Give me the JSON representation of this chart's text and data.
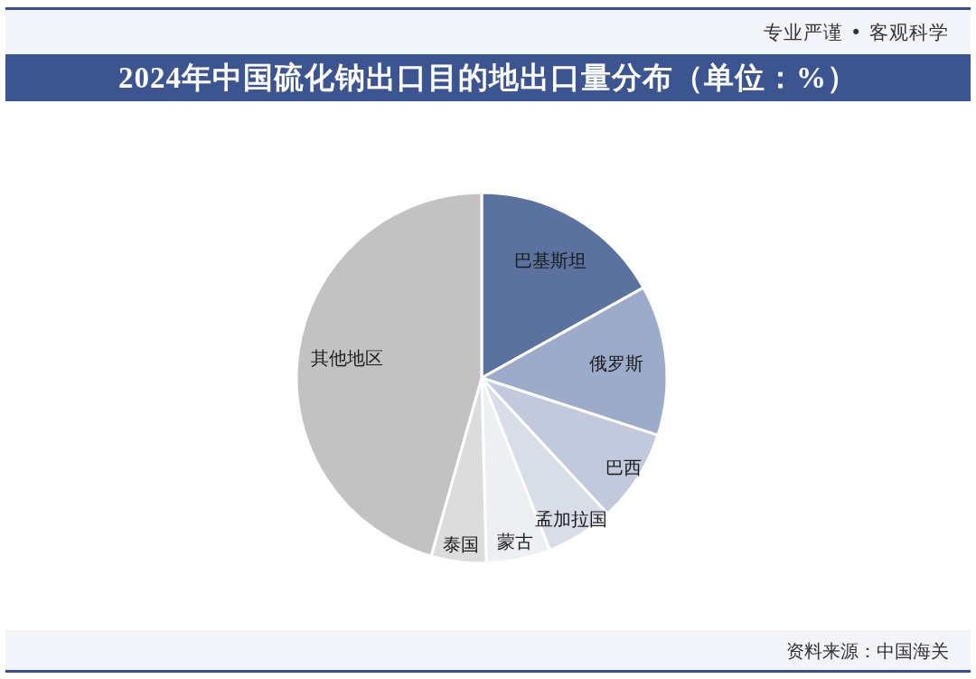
{
  "chart_data": {
    "type": "pie",
    "title": "2024年中国硫化钠出口目的地出口量分布（单位：%）",
    "categories": [
      "巴基斯坦",
      "俄罗斯",
      "巴西",
      "孟加拉国",
      "蒙古",
      "泰国",
      "其他地区"
    ],
    "values": [
      16.9,
      13.1,
      8.1,
      5.9,
      5.6,
      4.8,
      45.6
    ],
    "colors": [
      "#5b729f",
      "#9cabc9",
      "#c2c9dc",
      "#d9dde7",
      "#edeff3",
      "#dcdcdc",
      "#c2c2c2"
    ],
    "annotations": [
      "专业严谨 • 客观科学",
      "资料来源：中国海关"
    ]
  }
}
